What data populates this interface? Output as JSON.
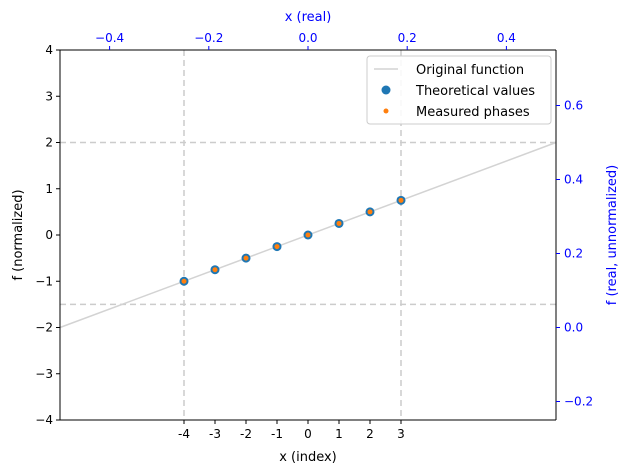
{
  "chart_data": {
    "type": "scatter",
    "title": "",
    "xlabel": "x (index)",
    "ylabel": "f (normalized)",
    "x2label": "x (real)",
    "y2label": "f (real, unnormalized)",
    "xlim": [
      -8,
      8
    ],
    "ylim": [
      -4,
      4
    ],
    "x2lim": [
      -0.5,
      0.5
    ],
    "y2lim": [
      -0.25,
      0.75
    ],
    "x_ticks": [
      -4,
      -3,
      -2,
      -1,
      0,
      1,
      2,
      3
    ],
    "x_tick_labels": [
      "-4",
      "-3",
      "-2",
      "-1",
      "0",
      "1",
      "2",
      "3"
    ],
    "y_ticks": [
      -4,
      -3,
      -2,
      -1,
      0,
      1,
      2,
      3,
      4
    ],
    "y_tick_labels": [
      "−4",
      "−3",
      "−2",
      "−1",
      "0",
      "1",
      "2",
      "3",
      "4"
    ],
    "x2_ticks": [
      -0.4,
      -0.2,
      0.0,
      0.2,
      0.4
    ],
    "x2_tick_labels": [
      "−0.4",
      "−0.2",
      "0.0",
      "0.2",
      "0.4"
    ],
    "y2_ticks": [
      -0.2,
      0.0,
      0.2,
      0.4,
      0.6
    ],
    "y2_tick_labels": [
      "−0.2",
      "0.0",
      "0.2",
      "0.4",
      "0.6"
    ],
    "grid": false,
    "legend_position": "top-right",
    "reference_lines": {
      "vertical_x": [
        -4,
        3
      ],
      "horizontal_y": [
        2,
        -1.5
      ]
    },
    "series": [
      {
        "name": "Original function",
        "kind": "line",
        "color": "#d3d3d3",
        "x": [
          -8,
          8
        ],
        "y": [
          -2,
          2
        ]
      },
      {
        "name": "Theoretical values",
        "kind": "scatter",
        "color": "#1f77b4",
        "x": [
          -4,
          -3,
          -2,
          -1,
          0,
          1,
          2,
          3
        ],
        "y": [
          -1,
          -0.75,
          -0.5,
          -0.25,
          0,
          0.25,
          0.5,
          0.75
        ]
      },
      {
        "name": "Measured phases",
        "kind": "scatter",
        "color": "#ff7f0e",
        "x": [
          -4,
          -3,
          -2,
          -1,
          0,
          1,
          2,
          3
        ],
        "y": [
          -1,
          -0.75,
          -0.5,
          -0.25,
          0,
          0.25,
          0.5,
          0.75
        ]
      }
    ],
    "colors": {
      "secondary_axis": "#0000ff",
      "reference_line": "#cccccc",
      "axes": "#000000"
    }
  }
}
